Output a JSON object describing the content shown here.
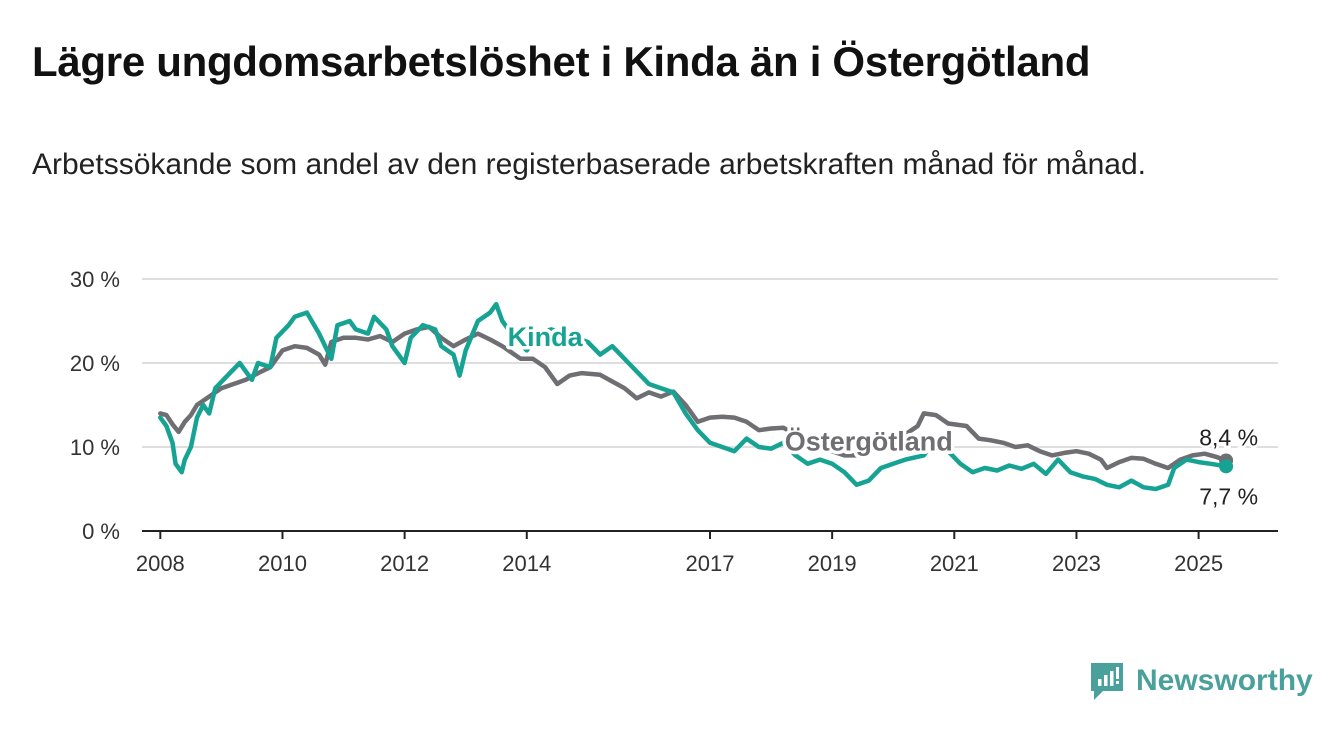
{
  "title": "Lägre ungdomsarbetslöshet i Kinda än i Östergötland",
  "subtitle": "Arbetssökande som andel av den registerbaserade arbetskraften månad för månad.",
  "brand": {
    "name": "Newsworthy",
    "icon": "newsworthy-logo-icon",
    "color": "#4aa09a"
  },
  "chart_data": {
    "type": "line",
    "y_ticks": [
      "0 %",
      "10 %",
      "20 %",
      "30 %"
    ],
    "x_ticks": [
      "2008",
      "2010",
      "2012",
      "2014",
      "2017",
      "2019",
      "2021",
      "2023",
      "2025"
    ],
    "ylim": [
      0,
      30
    ],
    "xlim": [
      2007.7,
      2026.3
    ],
    "grid": true,
    "legend": "inline labels",
    "series": [
      {
        "name": "Östergötland",
        "color": "#6e6e73",
        "end_label": "8,4 %",
        "points": [
          [
            2008.0,
            14.0
          ],
          [
            2008.1,
            13.8
          ],
          [
            2008.2,
            12.7
          ],
          [
            2008.3,
            11.8
          ],
          [
            2008.4,
            13.0
          ],
          [
            2008.5,
            13.8
          ],
          [
            2008.6,
            15.0
          ],
          [
            2008.8,
            16.0
          ],
          [
            2009.0,
            17.0
          ],
          [
            2009.2,
            17.5
          ],
          [
            2009.4,
            18.0
          ],
          [
            2009.6,
            18.8
          ],
          [
            2009.8,
            19.5
          ],
          [
            2010.0,
            21.5
          ],
          [
            2010.2,
            22.0
          ],
          [
            2010.4,
            21.8
          ],
          [
            2010.6,
            21.0
          ],
          [
            2010.7,
            19.8
          ],
          [
            2010.8,
            22.5
          ],
          [
            2011.0,
            23.0
          ],
          [
            2011.2,
            23.0
          ],
          [
            2011.4,
            22.8
          ],
          [
            2011.6,
            23.2
          ],
          [
            2011.8,
            22.5
          ],
          [
            2012.0,
            23.5
          ],
          [
            2012.2,
            24.0
          ],
          [
            2012.4,
            24.3
          ],
          [
            2012.6,
            23.0
          ],
          [
            2012.8,
            22.0
          ],
          [
            2013.0,
            22.8
          ],
          [
            2013.2,
            23.5
          ],
          [
            2013.4,
            22.8
          ],
          [
            2013.6,
            22.0
          ],
          [
            2013.9,
            20.5
          ],
          [
            2014.1,
            20.5
          ],
          [
            2014.3,
            19.5
          ],
          [
            2014.5,
            17.5
          ],
          [
            2014.7,
            18.5
          ],
          [
            2014.9,
            18.8
          ],
          [
            2015.2,
            18.6
          ],
          [
            2015.4,
            17.8
          ],
          [
            2015.6,
            17.0
          ],
          [
            2015.8,
            15.8
          ],
          [
            2016.0,
            16.5
          ],
          [
            2016.2,
            16.0
          ],
          [
            2016.4,
            16.6
          ],
          [
            2016.6,
            15.0
          ],
          [
            2016.8,
            13.0
          ],
          [
            2017.0,
            13.5
          ],
          [
            2017.2,
            13.6
          ],
          [
            2017.4,
            13.5
          ],
          [
            2017.6,
            13.0
          ],
          [
            2017.8,
            12.0
          ],
          [
            2018.0,
            12.2
          ],
          [
            2018.2,
            12.3
          ],
          [
            2018.4,
            11.5
          ],
          [
            2018.6,
            10.8
          ],
          [
            2018.8,
            10.5
          ],
          [
            2019.0,
            9.5
          ],
          [
            2019.2,
            9.0
          ],
          [
            2019.4,
            9.0
          ],
          [
            2019.6,
            9.5
          ],
          [
            2019.8,
            10.5
          ],
          [
            2020.0,
            11.0
          ],
          [
            2020.2,
            11.5
          ],
          [
            2020.4,
            12.5
          ],
          [
            2020.5,
            14.0
          ],
          [
            2020.7,
            13.8
          ],
          [
            2020.9,
            12.8
          ],
          [
            2021.2,
            12.5
          ],
          [
            2021.4,
            11.0
          ],
          [
            2021.6,
            10.8
          ],
          [
            2021.8,
            10.5
          ],
          [
            2022.0,
            10.0
          ],
          [
            2022.2,
            10.2
          ],
          [
            2022.4,
            9.5
          ],
          [
            2022.6,
            9.0
          ],
          [
            2022.8,
            9.3
          ],
          [
            2023.0,
            9.5
          ],
          [
            2023.2,
            9.2
          ],
          [
            2023.4,
            8.5
          ],
          [
            2023.5,
            7.5
          ],
          [
            2023.7,
            8.2
          ],
          [
            2023.9,
            8.7
          ],
          [
            2024.1,
            8.6
          ],
          [
            2024.3,
            8.0
          ],
          [
            2024.5,
            7.5
          ],
          [
            2024.7,
            8.5
          ],
          [
            2024.9,
            9.0
          ],
          [
            2025.1,
            9.2
          ],
          [
            2025.3,
            8.8
          ],
          [
            2025.45,
            8.4
          ]
        ]
      },
      {
        "name": "Kinda",
        "color": "#16a394",
        "end_label": "7,7 %",
        "points": [
          [
            2008.0,
            13.5
          ],
          [
            2008.1,
            12.5
          ],
          [
            2008.2,
            10.5
          ],
          [
            2008.25,
            8.0
          ],
          [
            2008.35,
            7.0
          ],
          [
            2008.4,
            8.5
          ],
          [
            2008.5,
            10.0
          ],
          [
            2008.6,
            13.5
          ],
          [
            2008.7,
            15.0
          ],
          [
            2008.8,
            14.0
          ],
          [
            2008.9,
            17.0
          ],
          [
            2009.1,
            18.5
          ],
          [
            2009.3,
            20.0
          ],
          [
            2009.5,
            18.0
          ],
          [
            2009.6,
            20.0
          ],
          [
            2009.8,
            19.5
          ],
          [
            2009.9,
            23.0
          ],
          [
            2010.1,
            24.5
          ],
          [
            2010.2,
            25.5
          ],
          [
            2010.4,
            26.0
          ],
          [
            2010.6,
            23.5
          ],
          [
            2010.8,
            20.5
          ],
          [
            2010.9,
            24.5
          ],
          [
            2011.1,
            25.0
          ],
          [
            2011.2,
            24.0
          ],
          [
            2011.4,
            23.5
          ],
          [
            2011.5,
            25.5
          ],
          [
            2011.7,
            24.0
          ],
          [
            2011.8,
            22.0
          ],
          [
            2012.0,
            20.0
          ],
          [
            2012.1,
            23.0
          ],
          [
            2012.3,
            24.5
          ],
          [
            2012.5,
            24.0
          ],
          [
            2012.6,
            22.0
          ],
          [
            2012.8,
            21.0
          ],
          [
            2012.9,
            18.5
          ],
          [
            2013.0,
            21.5
          ],
          [
            2013.2,
            25.0
          ],
          [
            2013.4,
            26.0
          ],
          [
            2013.5,
            27.0
          ],
          [
            2013.6,
            25.0
          ],
          [
            2013.8,
            23.0
          ],
          [
            2014.0,
            21.5
          ],
          [
            2014.2,
            23.5
          ],
          [
            2014.4,
            24.0
          ],
          [
            2014.6,
            23.5
          ],
          [
            2014.8,
            23.0
          ],
          [
            2015.0,
            22.5
          ],
          [
            2015.2,
            21.0
          ],
          [
            2015.4,
            22.0
          ],
          [
            2015.6,
            20.5
          ],
          [
            2015.8,
            19.0
          ],
          [
            2016.0,
            17.5
          ],
          [
            2016.2,
            17.0
          ],
          [
            2016.4,
            16.5
          ],
          [
            2016.6,
            14.0
          ],
          [
            2016.8,
            12.0
          ],
          [
            2017.0,
            10.5
          ],
          [
            2017.2,
            10.0
          ],
          [
            2017.4,
            9.5
          ],
          [
            2017.6,
            11.0
          ],
          [
            2017.8,
            10.0
          ],
          [
            2018.0,
            9.8
          ],
          [
            2018.2,
            10.5
          ],
          [
            2018.4,
            9.0
          ],
          [
            2018.6,
            8.0
          ],
          [
            2018.8,
            8.5
          ],
          [
            2019.0,
            8.0
          ],
          [
            2019.2,
            7.0
          ],
          [
            2019.4,
            5.5
          ],
          [
            2019.6,
            6.0
          ],
          [
            2019.8,
            7.5
          ],
          [
            2020.0,
            8.0
          ],
          [
            2020.2,
            8.5
          ],
          [
            2020.5,
            9.0
          ],
          [
            2020.7,
            11.0
          ],
          [
            2020.9,
            9.5
          ],
          [
            2021.1,
            8.0
          ],
          [
            2021.3,
            7.0
          ],
          [
            2021.5,
            7.5
          ],
          [
            2021.7,
            7.2
          ],
          [
            2021.9,
            7.8
          ],
          [
            2022.1,
            7.4
          ],
          [
            2022.3,
            8.0
          ],
          [
            2022.5,
            6.8
          ],
          [
            2022.7,
            8.5
          ],
          [
            2022.9,
            7.0
          ],
          [
            2023.1,
            6.5
          ],
          [
            2023.3,
            6.2
          ],
          [
            2023.5,
            5.5
          ],
          [
            2023.7,
            5.2
          ],
          [
            2023.9,
            6.0
          ],
          [
            2024.1,
            5.2
          ],
          [
            2024.3,
            5.0
          ],
          [
            2024.5,
            5.5
          ],
          [
            2024.6,
            7.5
          ],
          [
            2024.8,
            8.5
          ],
          [
            2025.0,
            8.2
          ],
          [
            2025.2,
            8.0
          ],
          [
            2025.45,
            7.7
          ]
        ]
      }
    ]
  }
}
